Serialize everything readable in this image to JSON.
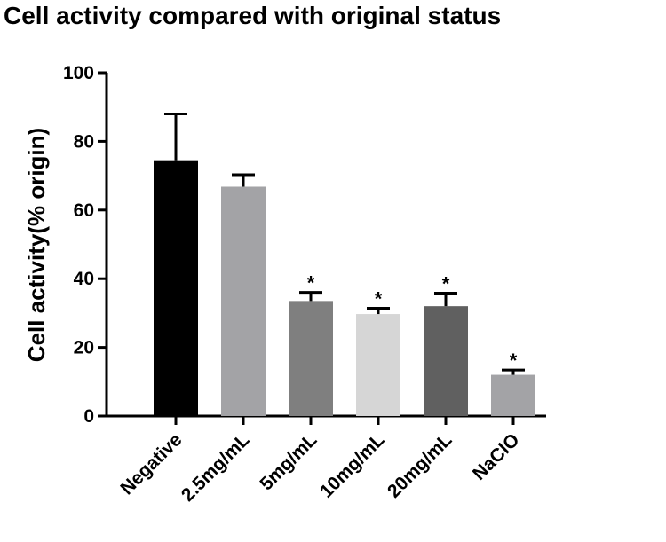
{
  "chart_data": {
    "type": "bar",
    "title": "Cell activity compared with original status",
    "ylabel": "Cell activity(% origin)",
    "xlabel": "",
    "ylim": [
      0,
      100
    ],
    "yticks": [
      0,
      20,
      40,
      60,
      80,
      100
    ],
    "categories": [
      "Negative",
      "2.5mg/mL",
      "5mg/mL",
      "10mg/mL",
      "20mg/mL",
      "NaClO"
    ],
    "values": [
      74.5,
      66.8,
      33.5,
      29.7,
      32,
      12
    ],
    "errors": [
      13.5,
      3.5,
      2.5,
      1.7,
      3.8,
      1.4
    ],
    "annotations": [
      "",
      "",
      "*",
      "*",
      "*",
      "*"
    ],
    "colors": [
      "#000000",
      "#a3a3a6",
      "#7f7f7f",
      "#d6d6d6",
      "#606060",
      "#a3a3a6"
    ],
    "grid": false,
    "legend": "none"
  }
}
